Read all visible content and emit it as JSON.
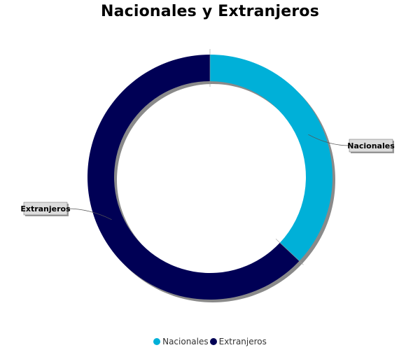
{
  "chart_data": {
    "type": "pie",
    "title": "Nacionales y Extranjeros",
    "donut": true,
    "slices": [
      {
        "label": "Nacionales",
        "value": 37,
        "color": "#00B0D8"
      },
      {
        "label": "Extranjeros",
        "value": 63,
        "color": "#000055"
      }
    ],
    "legend_position": "bottom"
  }
}
